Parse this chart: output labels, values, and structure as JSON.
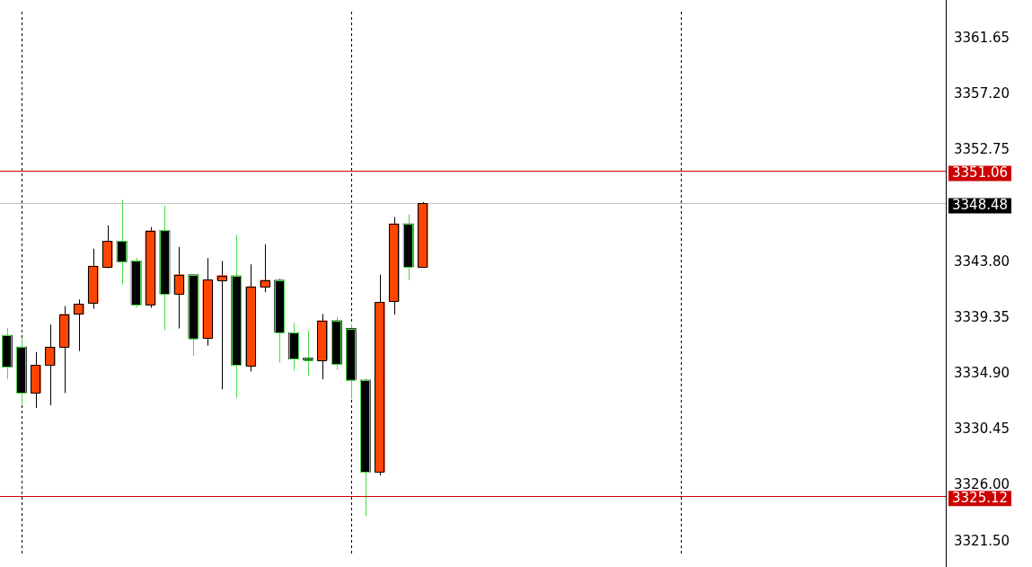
{
  "chart_data": {
    "type": "candlestick",
    "categories": [
      null,
      null,
      null,
      null,
      null,
      null,
      null,
      null,
      null,
      null,
      null,
      null,
      null,
      null,
      null,
      null,
      null,
      null,
      null,
      null,
      null,
      null,
      null,
      null,
      null,
      null,
      null,
      null,
      null,
      null,
      null,
      null,
      null,
      null,
      null,
      null,
      null,
      null,
      null,
      null,
      null,
      null,
      null,
      null,
      null,
      null,
      null,
      null,
      null,
      null,
      null,
      null,
      null,
      null,
      null,
      null,
      null,
      null,
      null,
      null,
      null,
      null,
      null,
      null,
      null,
      null
    ],
    "ohlc": [
      [
        3337.95,
        3338.53,
        3334.45,
        3335.44
      ],
      [
        3337.02,
        3337.72,
        3332.45,
        3333.37
      ],
      [
        3333.37,
        3336.62,
        3332.16,
        3335.57
      ],
      [
        3335.57,
        3338.82,
        3332.38,
        3337.02
      ],
      [
        3337.05,
        3340.29,
        3333.35,
        3339.63
      ],
      [
        3339.63,
        3340.82,
        3336.71,
        3340.45
      ],
      [
        3340.52,
        3344.87,
        3340.08,
        3343.48
      ],
      [
        3343.41,
        3346.73,
        3343.31,
        3345.47
      ],
      [
        3345.47,
        3348.77,
        3342.01,
        3343.82
      ],
      [
        3343.89,
        3344.12,
        3340.15,
        3340.39
      ],
      [
        3340.39,
        3346.59,
        3340.15,
        3346.3
      ],
      [
        3346.34,
        3348.31,
        3338.36,
        3341.28
      ],
      [
        3341.28,
        3345.01,
        3338.5,
        3342.79
      ],
      [
        3342.79,
        3342.81,
        3336.33,
        3337.72
      ],
      [
        3337.72,
        3344.12,
        3337.13,
        3342.38
      ],
      [
        3342.38,
        3343.89,
        3333.65,
        3342.72
      ],
      [
        3342.7,
        3345.97,
        3332.96,
        3335.57
      ],
      [
        3335.5,
        3343.62,
        3335.06,
        3341.83
      ],
      [
        3341.83,
        3345.22,
        3341.39,
        3342.35
      ],
      [
        3342.35,
        3342.52,
        3335.78,
        3338.21
      ],
      [
        3338.16,
        3338.96,
        3335.16,
        3336.07
      ],
      [
        3336.1,
        3338.34,
        3334.75,
        3335.99
      ],
      [
        3335.99,
        3339.65,
        3334.45,
        3339.12
      ],
      [
        3339.12,
        3339.42,
        3335.2,
        3335.66
      ],
      [
        3338.5,
        3338.87,
        3332.89,
        3334.42
      ],
      [
        3334.38,
        3334.47,
        3323.56,
        3327.05
      ],
      [
        3327.05,
        3342.81,
        3326.77,
        3340.59
      ],
      [
        3340.66,
        3347.4,
        3339.6,
        3346.85
      ],
      [
        3346.85,
        3347.62,
        3342.35,
        3343.43
      ],
      [
        3343.41,
        3348.59,
        3343.36,
        3348.48
      ],
      null,
      null,
      null,
      null,
      null,
      null,
      null,
      null,
      null,
      null,
      null,
      null,
      null,
      null,
      null,
      null,
      null,
      null,
      null,
      null,
      null,
      null,
      null,
      null,
      null,
      null,
      null,
      null,
      null,
      null,
      null,
      null,
      null,
      null,
      null,
      null
    ],
    "colors": [
      "#000000",
      "#000000",
      "#ff4500",
      "#ff4500",
      "#ff4500",
      "#ff4500",
      "#ff4500",
      "#ff4500",
      "#000000",
      "#000000",
      "#ff4500",
      "#000000",
      "#ff4500",
      "#000000",
      "#ff4500",
      "#ff4500",
      "#000000",
      "#ff4500",
      "#ff4500",
      "#000000",
      "#000000",
      "#000000",
      "#ff4500",
      "#000000",
      "#000000",
      "#000000",
      "#ff4500",
      "#ff4500",
      "#000000",
      "#ff4500",
      null,
      null,
      null,
      null,
      null,
      null,
      null,
      null,
      null,
      null,
      null,
      null,
      null,
      null,
      null,
      null,
      null,
      null,
      null,
      null,
      null,
      null,
      null,
      null,
      null,
      null,
      null,
      null,
      null,
      null,
      null,
      null,
      null,
      null,
      null,
      null
    ],
    "ylim": [
      3320.4,
      3363.78
    ],
    "yticks": [
      3361.65,
      {
        "value": 3357.2,
        "label": "3357.20"
      },
      3352.75,
      {
        "value": 3343.8,
        "label": "3343.80"
      },
      3339.35,
      {
        "value": 3334.9,
        "label": "3334.90"
      },
      3330.45,
      {
        "value": 3326,
        "label": "3326.00"
      },
      {
        "value": 3321.5,
        "label": "3321.50"
      }
    ],
    "ref_lines": [
      {
        "axis": "y",
        "value": 3351.06,
        "label": "3351.06",
        "color": "#cc0000"
      },
      {
        "axis": "y",
        "value": 3348.48,
        "label": "3348.48",
        "color": "#c0c0c0"
      },
      {
        "axis": "y",
        "value": 3325.12,
        "label": "3325.12",
        "color": "#cc0000"
      }
    ],
    "tick_labels": "y",
    "grid": "x"
  }
}
